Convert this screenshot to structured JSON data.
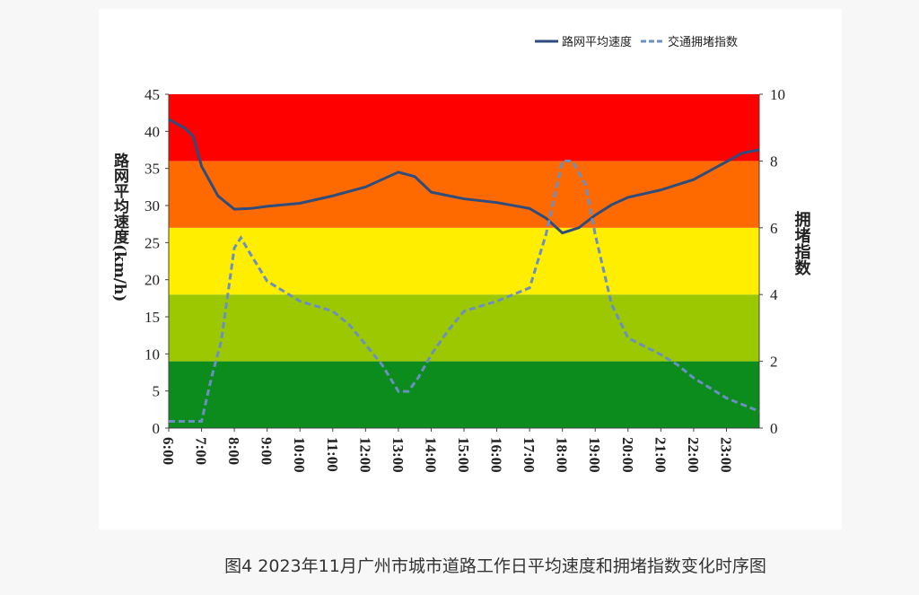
{
  "chart_data": {
    "type": "line",
    "caption": "图4  2023年11月广州市城市道路工作日平均速度和拥堵指数变化时序图",
    "ylabel": "路网平均速度(km/h)",
    "y2label": "拥堵指数",
    "xlim": [
      6,
      24
    ],
    "xticks": [
      {
        "value": 6,
        "label": "6:00"
      },
      {
        "value": 7,
        "label": "7:00"
      },
      {
        "value": 8,
        "label": "8:00"
      },
      {
        "value": 9,
        "label": "9:00"
      },
      {
        "value": 10,
        "label": "10:00"
      },
      {
        "value": 11,
        "label": "11:00"
      },
      {
        "value": 12,
        "label": "12:00"
      },
      {
        "value": 13,
        "label": "13:00"
      },
      {
        "value": 14,
        "label": "14:00"
      },
      {
        "value": 15,
        "label": "15:00"
      },
      {
        "value": 16,
        "label": "16:00"
      },
      {
        "value": 17,
        "label": "17:00"
      },
      {
        "value": 18,
        "label": "18:00"
      },
      {
        "value": 19,
        "label": "19:00"
      },
      {
        "value": 20,
        "label": "20:00"
      },
      {
        "value": 21,
        "label": "21:00"
      },
      {
        "value": 22,
        "label": "22:00"
      },
      {
        "value": 23,
        "label": "23:00"
      }
    ],
    "ylim": [
      0,
      45
    ],
    "yticks": [
      0,
      5,
      10,
      15,
      20,
      25,
      30,
      35,
      40,
      45
    ],
    "y2lim": [
      0,
      10
    ],
    "y2ticks": [
      0,
      2,
      4,
      6,
      8,
      10
    ],
    "bands": [
      {
        "from": 0,
        "to": 2,
        "color": "#0b8c1c"
      },
      {
        "from": 2,
        "to": 4,
        "color": "#9bc800"
      },
      {
        "from": 4,
        "to": 6,
        "color": "#ffee00"
      },
      {
        "from": 6,
        "to": 8,
        "color": "#ff6a00"
      },
      {
        "from": 8,
        "to": 10,
        "color": "#ff0000"
      }
    ],
    "series": [
      {
        "name": "路网平均速度",
        "color": "#2f4d7c",
        "dash": false,
        "x": [
          6,
          6.5,
          6.75,
          7,
          7.5,
          8,
          8.5,
          9,
          10,
          11,
          12,
          12.5,
          13,
          13.5,
          14,
          15,
          16,
          17,
          17.5,
          18,
          18.5,
          19,
          19.5,
          20,
          21,
          22,
          23,
          23.5,
          24
        ],
        "values": [
          41.6,
          40.4,
          39.3,
          35.3,
          31.3,
          29.5,
          29.6,
          29.9,
          30.3,
          31.3,
          32.5,
          33.5,
          34.5,
          33.9,
          31.8,
          30.9,
          30.4,
          29.6,
          28.3,
          26.3,
          27,
          28.7,
          30.1,
          31.1,
          32.1,
          33.5,
          35.9,
          37.1,
          37.5
        ]
      },
      {
        "name": "交通拥堵指数",
        "color": "#6b8fc4",
        "dash": true,
        "axis": "y2",
        "x": [
          6,
          7,
          7.3,
          7.6,
          8,
          8.2,
          8.5,
          9,
          10,
          11,
          11.5,
          12,
          12.5,
          13,
          13.3,
          13.6,
          14,
          14.5,
          15,
          16,
          17,
          17.5,
          18,
          18.3,
          18.7,
          19,
          19.5,
          20,
          21,
          21.5,
          22,
          23,
          24
        ],
        "values": [
          0.2,
          0.2,
          1.5,
          2.6,
          5.4,
          5.7,
          5.2,
          4.4,
          3.8,
          3.5,
          3.1,
          2.5,
          1.9,
          1.1,
          1.1,
          1.5,
          2.2,
          2.9,
          3.5,
          3.8,
          4.2,
          5.8,
          8.0,
          8.0,
          7.3,
          5.8,
          3.7,
          2.7,
          2.2,
          1.9,
          1.5,
          0.9,
          0.5
        ]
      }
    ]
  }
}
